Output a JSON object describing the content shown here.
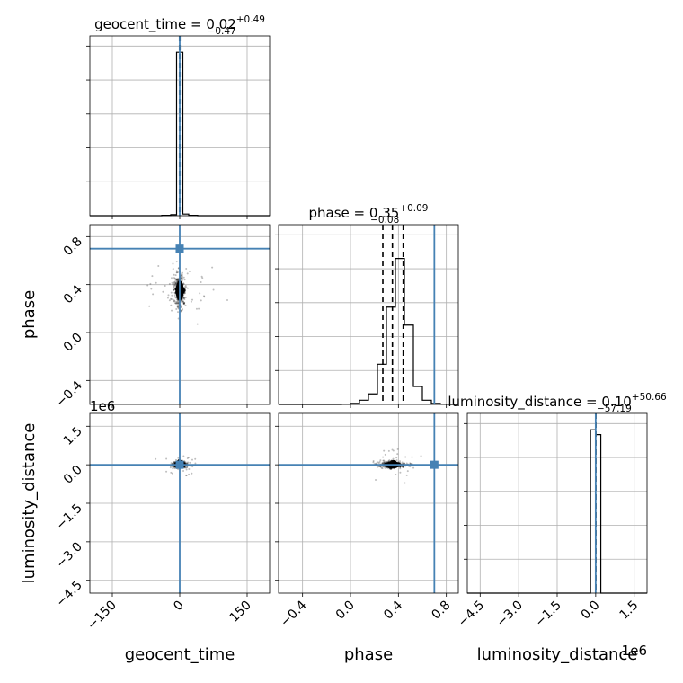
{
  "chart_data": {
    "type": "corner",
    "parameters": [
      {
        "name": "geocent_time",
        "axis_label": "geocent_time",
        "title_prefix": "geocent_time = 0.02",
        "title_plus": "+0.49",
        "title_minus": "−0.47",
        "median": 0.02,
        "q_lo": -0.45,
        "q_hi": 0.51,
        "truth": 0.0,
        "range": [
          -200,
          200
        ],
        "ticks": [
          -150,
          0,
          150
        ],
        "tick_labels": [
          "−150",
          "0",
          "150"
        ],
        "hist_edges": [
          -200,
          -180,
          -160,
          -140,
          -120,
          -100,
          -80,
          -60,
          -40,
          -20,
          -7,
          0,
          7,
          20,
          40,
          60,
          80,
          100,
          120,
          140,
          160,
          180,
          200
        ],
        "hist_counts": [
          0,
          0,
          0,
          0,
          0,
          0,
          0,
          0,
          0.2,
          0.6,
          100,
          100,
          1.0,
          0.2,
          0,
          0,
          0,
          0,
          0,
          0,
          0,
          0
        ],
        "hist_ymax": 110
      },
      {
        "name": "phase",
        "axis_label": "phase",
        "title_prefix": "phase = 0.35",
        "title_plus": "+0.09",
        "title_minus": "−0.08",
        "median": 0.35,
        "q_lo": 0.27,
        "q_hi": 0.44,
        "truth": 0.7,
        "range": [
          -0.6,
          0.9
        ],
        "ticks": [
          -0.4,
          0.0,
          0.4,
          0.8
        ],
        "tick_labels": [
          "−0.4",
          "0.0",
          "0.4",
          "0.8"
        ],
        "hist_edges": [
          -0.6,
          -0.525,
          -0.45,
          -0.375,
          -0.3,
          -0.225,
          -0.15,
          -0.075,
          0.0,
          0.075,
          0.15,
          0.225,
          0.3,
          0.375,
          0.45,
          0.525,
          0.6,
          0.675,
          0.75,
          0.825,
          0.9
        ],
        "hist_counts": [
          0,
          0,
          0,
          0,
          0,
          0,
          0,
          0.3,
          1,
          4,
          10,
          38,
          92,
          138,
          75,
          17,
          4,
          1,
          0.3,
          0
        ],
        "hist_ymax": 170
      },
      {
        "name": "luminosity_distance",
        "axis_label": "luminosity_distance",
        "title_prefix": "luminosity_distance = 0.10",
        "title_plus": "+50.66",
        "title_minus": "−57.19",
        "median": 0.1,
        "q_lo": -57.09,
        "q_hi": 50.76,
        "truth": 0.0,
        "range": [
          -5000000,
          2000000
        ],
        "ticks": [
          -4500000,
          -3000000,
          -1500000,
          0,
          1500000
        ],
        "tick_labels": [
          "−4.5",
          "−3.0",
          "−1.5",
          "0.0",
          "1.5"
        ],
        "offset_label": "1e6",
        "hist_edges": [
          -5000000,
          -4700000,
          -4400000,
          -4100000,
          -3800000,
          -3500000,
          -3200000,
          -2900000,
          -2600000,
          -2300000,
          -2000000,
          -1700000,
          -1400000,
          -1100000,
          -800000,
          -500000,
          -200000,
          0,
          200000,
          500000,
          800000,
          1100000,
          1400000,
          1700000,
          2000000
        ],
        "hist_counts": [
          0,
          0,
          0,
          0,
          0,
          0,
          0,
          0,
          0,
          0,
          0,
          0,
          0,
          0,
          0,
          0,
          100,
          97,
          0,
          0,
          0,
          0,
          0,
          0
        ],
        "hist_ymax": 110
      }
    ],
    "grid": true,
    "truth_color": "#4682b4",
    "hist_color": "#000000",
    "quantile_style": "dashed"
  }
}
